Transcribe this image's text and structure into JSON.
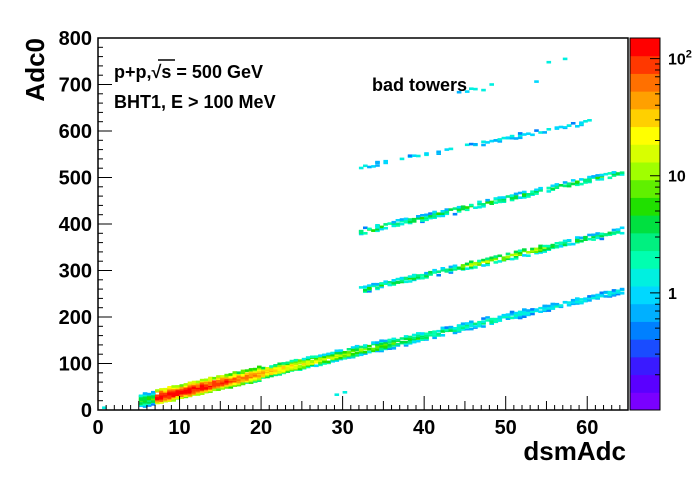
{
  "chart_data": {
    "type": "heatmap",
    "title": "",
    "xlabel": "dsmAdc",
    "ylabel": "Adc0",
    "xlim": [
      0,
      65
    ],
    "ylim": [
      0,
      800
    ],
    "x_ticks": [
      "0",
      "10",
      "20",
      "30",
      "40",
      "50",
      "60"
    ],
    "y_ticks": [
      "0",
      "100",
      "200",
      "300",
      "400",
      "500",
      "600",
      "700",
      "800"
    ],
    "color_scale": "log",
    "color_range": [
      0.1,
      150
    ],
    "color_ticks": [
      {
        "value": 1,
        "label": "1"
      },
      {
        "value": 10,
        "label": "10"
      },
      {
        "value": 100,
        "label": "10",
        "sup": "2"
      }
    ],
    "palette": [
      "#7a00ff",
      "#5a00ff",
      "#3a1aff",
      "#1a4cff",
      "#0080ff",
      "#00b0ff",
      "#00d8ff",
      "#00f0e0",
      "#00ffb0",
      "#00f080",
      "#00e040",
      "#20e000",
      "#60f000",
      "#a0ff00",
      "#d8ff00",
      "#ffff00",
      "#ffd000",
      "#ffa000",
      "#ff7000",
      "#ff3800",
      "#ff0000"
    ],
    "annotations": {
      "line1_prefix": "p+p,",
      "sqrt_s": "√s",
      "line1_suffix": " = 500 GeV",
      "line2": "BHT1, E > 100 MeV",
      "label": "bad towers"
    },
    "bands": [
      {
        "name": "",
        "x_range": [
          5,
          64
        ],
        "slope": 4.0,
        "intercept": 0,
        "counts": "high at low x (peak ~100 near x=8-10), decreasing to ~1 at x>40"
      },
      {
        "name": "",
        "x_range": [
          32,
          64
        ],
        "slope": 4.0,
        "intercept": 130,
        "counts": "~3-15, enhanced near x=44-55"
      },
      {
        "name": "",
        "x_range": [
          32,
          64
        ],
        "slope": 4.0,
        "intercept": 255,
        "counts": "~1-10"
      },
      {
        "name": "",
        "x_range": [
          32,
          60
        ],
        "slope": 3.5,
        "intercept": 410,
        "counts": "~1"
      },
      {
        "name": "",
        "x_range": [
          44,
          56
        ],
        "slope": 2.5,
        "intercept": 575,
        "counts": "~1 (sparse)"
      }
    ]
  }
}
